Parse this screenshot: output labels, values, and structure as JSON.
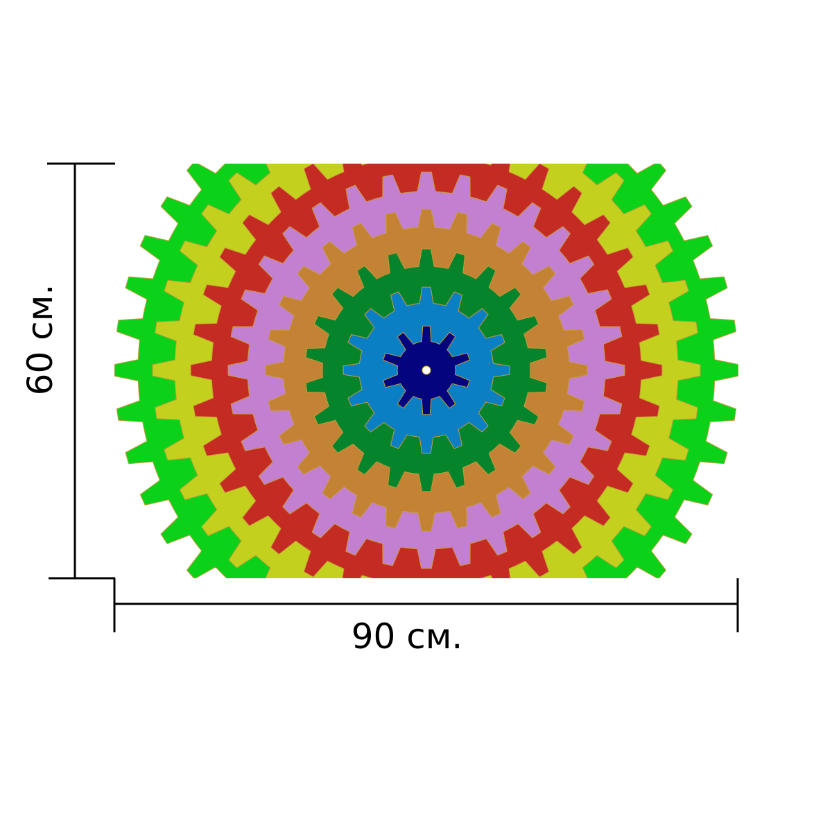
{
  "dimensions": {
    "height_label": "60 см.",
    "width_label": "90 см."
  },
  "gear_rings": [
    {
      "name": "outer-green",
      "color": "#0bd219",
      "teeth": 44
    },
    {
      "name": "yellow-green",
      "color": "#c3d11e",
      "teeth": 40
    },
    {
      "name": "red",
      "color": "#c42b22",
      "teeth": 36
    },
    {
      "name": "lilac",
      "color": "#c37fd0",
      "teeth": 32
    },
    {
      "name": "ochre",
      "color": "#c38234",
      "teeth": 28
    },
    {
      "name": "dark-green",
      "color": "#06842c",
      "teeth": 22
    },
    {
      "name": "sky-blue",
      "color": "#0a7fc3",
      "teeth": 16
    },
    {
      "name": "navy",
      "color": "#04047f",
      "teeth": 10
    }
  ],
  "colors": {
    "outline": "#c89a3a",
    "hub": "#ffffff",
    "dimension_lines": "#000000"
  }
}
